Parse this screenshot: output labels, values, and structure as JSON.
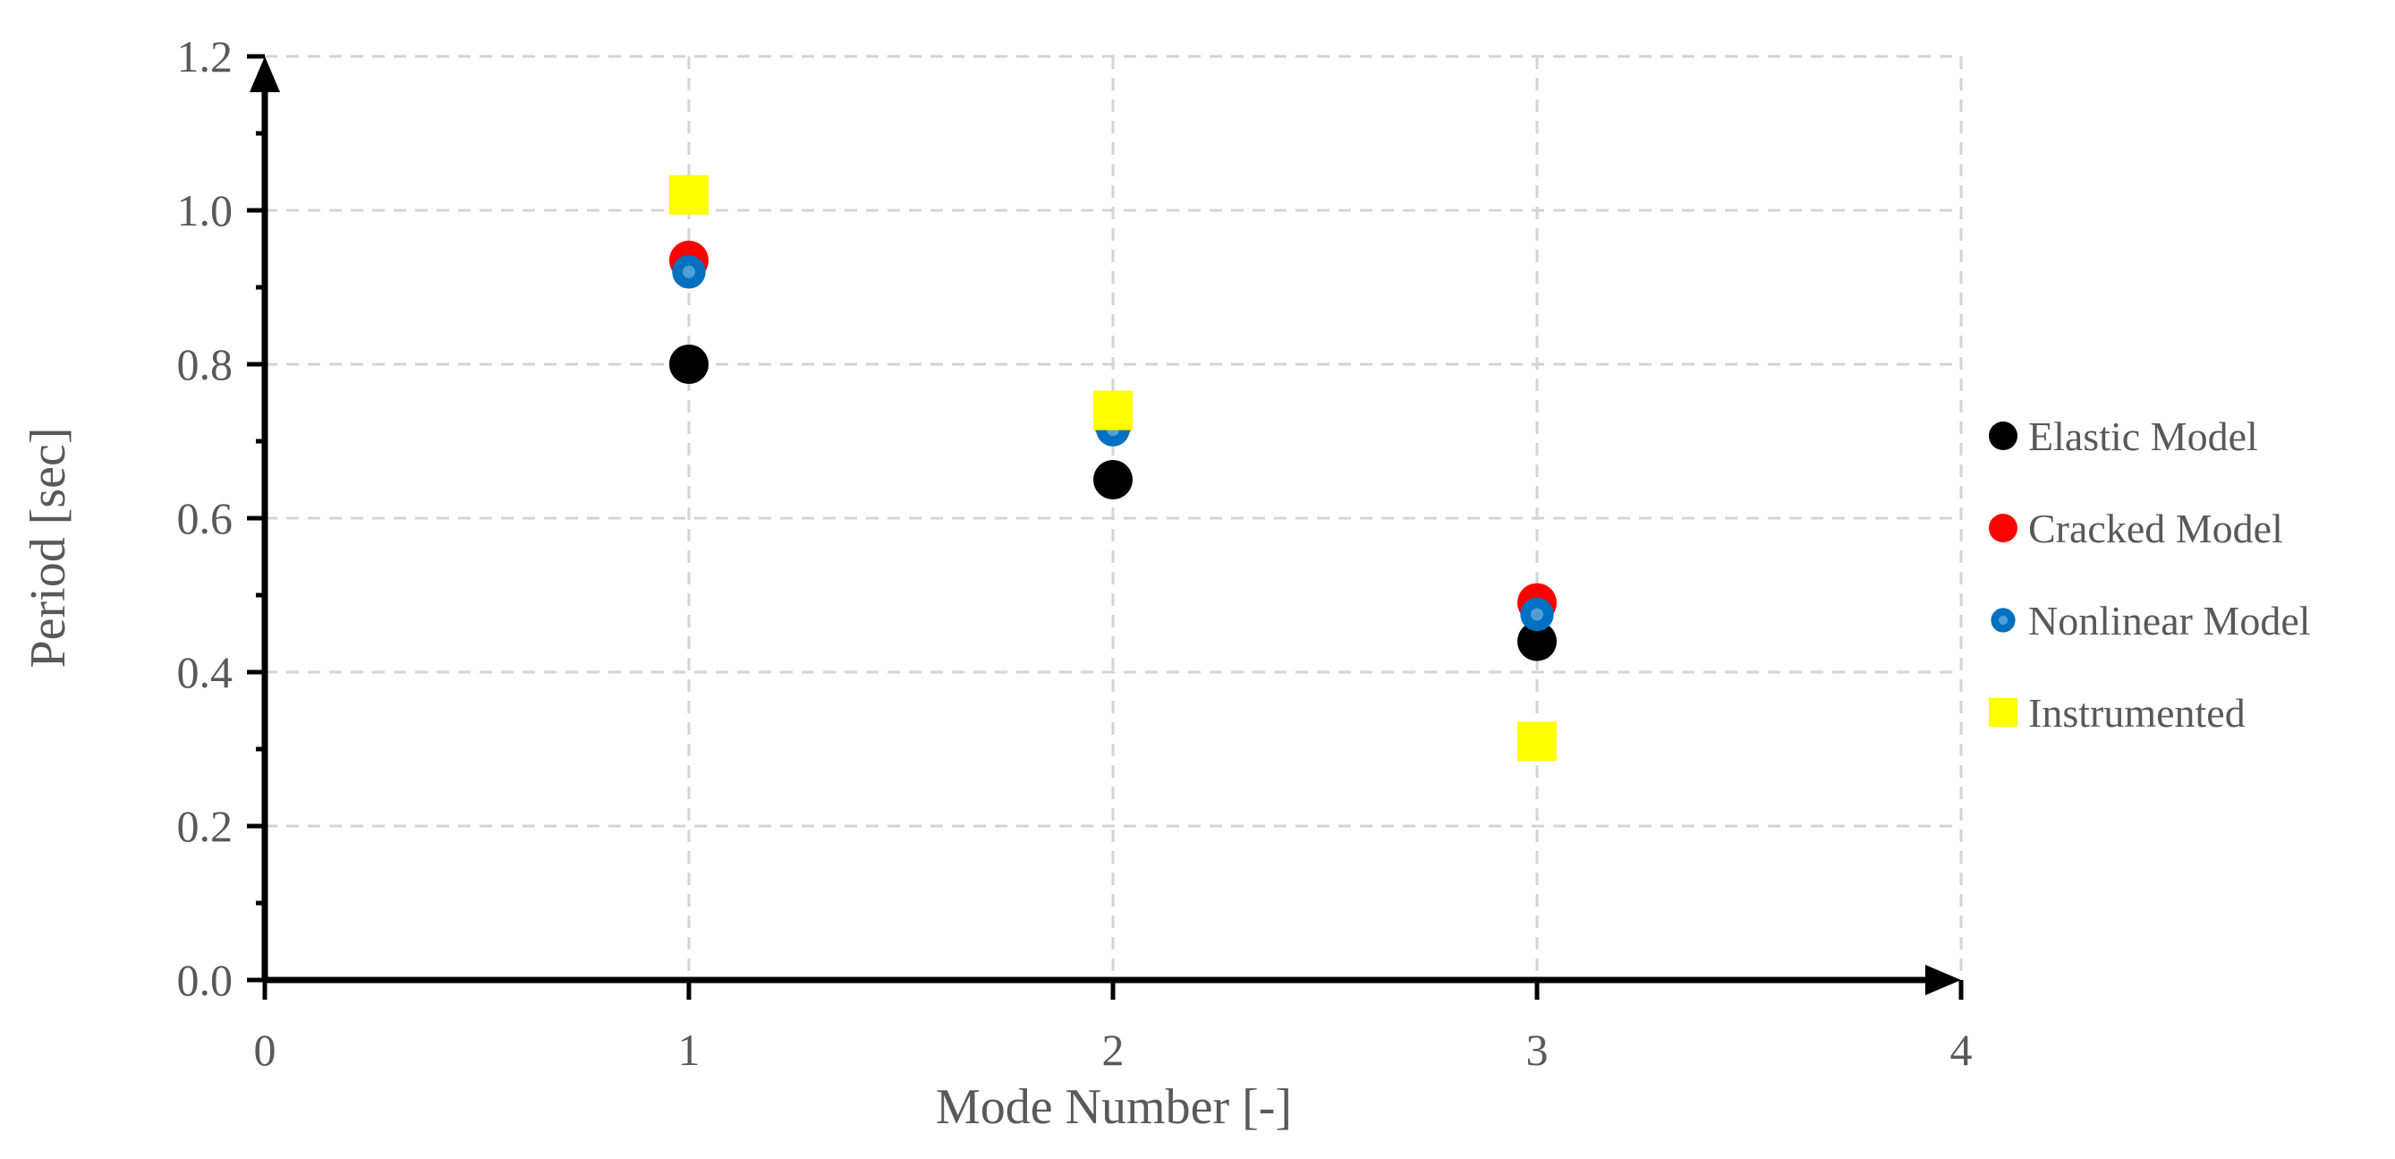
{
  "chart_data": {
    "type": "scatter",
    "title": "",
    "xlabel": "Mode Number [-]",
    "ylabel": "Period [sec]",
    "xlim": [
      0,
      4
    ],
    "ylim": [
      0,
      1.2
    ],
    "x_ticks": [
      "0",
      "1",
      "2",
      "3",
      "4"
    ],
    "y_ticks": [
      "0.0",
      "0.2",
      "0.4",
      "0.6",
      "0.8",
      "1.0",
      "1.2"
    ],
    "grid": true,
    "legend_position": "right",
    "series": [
      {
        "name": "Elastic Model",
        "marker": "circle",
        "color": "#000000",
        "points": [
          {
            "x": 1,
            "y": 0.8
          },
          {
            "x": 2,
            "y": 0.65
          },
          {
            "x": 3,
            "y": 0.44
          }
        ]
      },
      {
        "name": "Cracked Model",
        "marker": "circle",
        "color": "#ff0000",
        "points": [
          {
            "x": 1,
            "y": 0.935
          },
          {
            "x": 2,
            "y": 0.725
          },
          {
            "x": 3,
            "y": 0.49
          }
        ]
      },
      {
        "name": "Nonlinear Model",
        "marker": "circle-ring",
        "color": "#0070c0",
        "points": [
          {
            "x": 1,
            "y": 0.92
          },
          {
            "x": 2,
            "y": 0.715
          },
          {
            "x": 3,
            "y": 0.475
          }
        ]
      },
      {
        "name": "Instrumented",
        "marker": "square",
        "color": "#ffff00",
        "points": [
          {
            "x": 1,
            "y": 1.02
          },
          {
            "x": 2,
            "y": 0.74
          },
          {
            "x": 3,
            "y": 0.31
          }
        ]
      }
    ]
  }
}
